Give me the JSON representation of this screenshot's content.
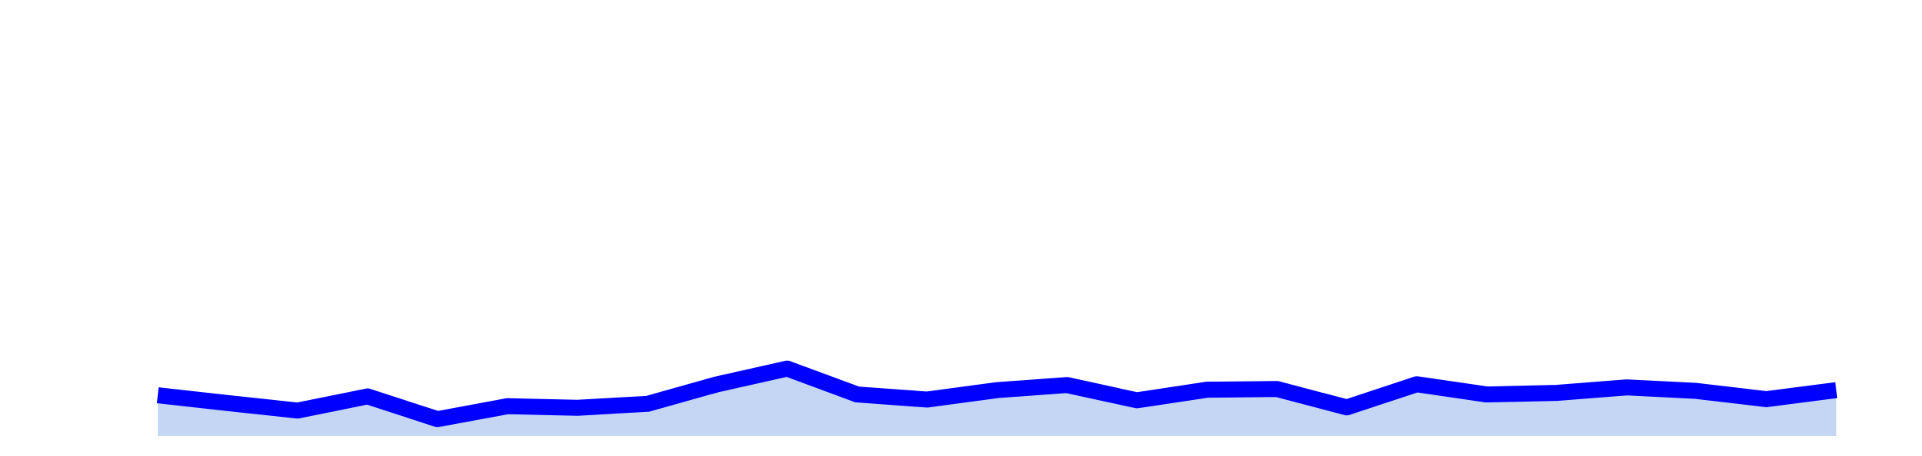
{
  "chart_data": {
    "type": "area",
    "title": "",
    "xlabel": "",
    "ylabel": "",
    "x": [
      1,
      2,
      3,
      4,
      5,
      6,
      7,
      8,
      9,
      10,
      11,
      12,
      13,
      14,
      15,
      16,
      17,
      18,
      19,
      20,
      21,
      22,
      23,
      24,
      25
    ],
    "ylim": [
      0,
      100
    ],
    "grid": false,
    "axes_visible": false,
    "series": [
      {
        "values": [
          10.4,
          8.4,
          6.5,
          10.1,
          4.3,
          7.6,
          7.2,
          8.2,
          13.2,
          17.2,
          10.6,
          9.3,
          11.7,
          13.0,
          9.1,
          11.8,
          12.0,
          7.3,
          13.2,
          10.6,
          11.0,
          12.4,
          11.5,
          9.4,
          11.7
        ],
        "line_color": "#0000ff",
        "fill_color": "#c5d6f5"
      }
    ]
  }
}
